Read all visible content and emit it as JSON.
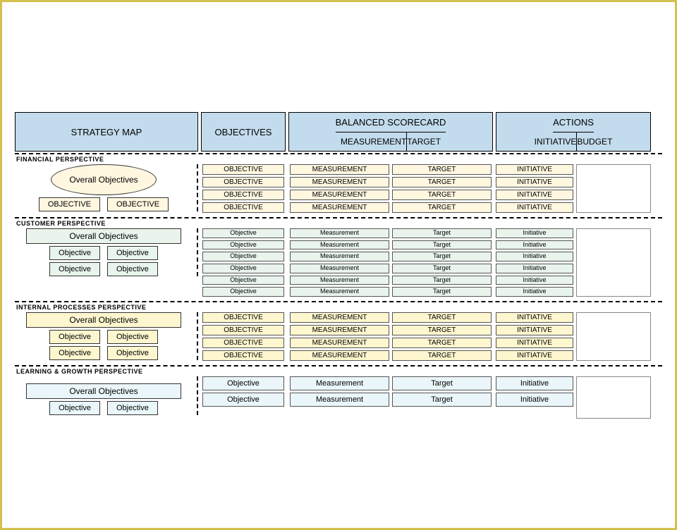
{
  "type": "balanced-scorecard-template",
  "frame_border_color": "#d4c04e",
  "header": {
    "bg": "#c3dced",
    "strategy": "STRATEGY MAP",
    "objectives": "OBJECTIVES",
    "bsc_title": "BALANCED SCORECARD",
    "measurement": "MEASUREMENT",
    "target": "TARGET",
    "actions_title": "ACTIONS",
    "initiative": "INITIATIVE",
    "budget": "BUDGET"
  },
  "perspectives": [
    {
      "id": "financial",
      "label": "FINANCIAL PERSPECTIVE",
      "theme_bg": "#fff7e0",
      "strategy": {
        "overall_shape": "oval",
        "overall_text": "Overall Objectives",
        "sub_objectives": [
          "OBJECTIVE",
          "OBJECTIVE"
        ]
      },
      "rows": [
        {
          "obj": "OBJECTIVE",
          "meas": "MEASUREMENT",
          "tgt": "TARGET",
          "init": "INITIATIVE"
        },
        {
          "obj": "OBJECTIVE",
          "meas": "MEASUREMENT",
          "tgt": "TARGET",
          "init": "INITIATIVE"
        },
        {
          "obj": "OBJECTIVE",
          "meas": "MEASUREMENT",
          "tgt": "TARGET",
          "init": "INITIATIVE"
        },
        {
          "obj": "OBJECTIVE",
          "meas": "MEASUREMENT",
          "tgt": "TARGET",
          "init": "INITIATIVE"
        }
      ],
      "row_size": "small",
      "text_case": "upper"
    },
    {
      "id": "customer",
      "label": "CUSTOMER PERSPECTIVE",
      "theme_bg": "#e8f4ec",
      "strategy": {
        "overall_shape": "rect",
        "overall_text": "Overall Objectives",
        "sub_objectives": [
          "Objective",
          "Objective",
          "Objective",
          "Objective"
        ]
      },
      "rows": [
        {
          "obj": "Objective",
          "meas": "Measurement",
          "tgt": "Target",
          "init": "Initiative"
        },
        {
          "obj": "Objective",
          "meas": "Measurement",
          "tgt": "Target",
          "init": "Initiative"
        },
        {
          "obj": "Objective",
          "meas": "Measurement",
          "tgt": "Target",
          "init": "Initiative"
        },
        {
          "obj": "Objective",
          "meas": "Measurement",
          "tgt": "Target",
          "init": "Initiative"
        },
        {
          "obj": "Objective",
          "meas": "Measurement",
          "tgt": "Target",
          "init": "Initiative"
        },
        {
          "obj": "Objective",
          "meas": "Measurement",
          "tgt": "Target",
          "init": "Initiative"
        }
      ],
      "row_size": "tiny",
      "text_case": "title"
    },
    {
      "id": "internal",
      "label": "INTERNAL  PROCESSES  PERSPECTIVE",
      "theme_bg": "#fdf6ce",
      "strategy": {
        "overall_shape": "rect",
        "overall_text": "Overall Objectives",
        "sub_objectives": [
          "Objective",
          "Objective",
          "Objective",
          "Objective"
        ]
      },
      "rows": [
        {
          "obj": "OBJECTIVE",
          "meas": "MEASUREMENT",
          "tgt": "TARGET",
          "init": "INITIATIVE"
        },
        {
          "obj": "OBJECTIVE",
          "meas": "MEASUREMENT",
          "tgt": "TARGET",
          "init": "INITIATIVE"
        },
        {
          "obj": "OBJECTIVE",
          "meas": "MEASUREMENT",
          "tgt": "TARGET",
          "init": "INITIATIVE"
        },
        {
          "obj": "OBJECTIVE",
          "meas": "MEASUREMENT",
          "tgt": "TARGET",
          "init": "INITIATIVE"
        }
      ],
      "row_size": "small",
      "text_case": "upper"
    },
    {
      "id": "learning",
      "label": "LEARNING & GROWTH PERSPECTIVE",
      "theme_bg": "#eaf6f9",
      "strategy": {
        "overall_shape": "rect",
        "overall_text": "Overall Objectives",
        "sub_objectives": [
          "Objective",
          "Objective"
        ]
      },
      "rows": [
        {
          "obj": "Objective",
          "meas": "Measurement",
          "tgt": "Target",
          "init": "Initiative"
        },
        {
          "obj": "Objective",
          "meas": "Measurement",
          "tgt": "Target",
          "init": "Initiative"
        }
      ],
      "row_size": "normal",
      "text_case": "title",
      "extra_spacing": true
    }
  ]
}
